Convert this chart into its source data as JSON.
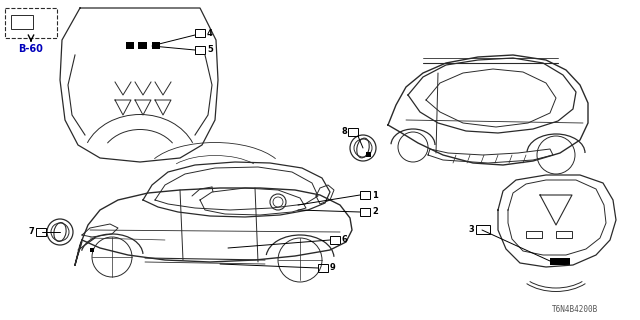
{
  "bg_color": "#ffffff",
  "line_color": "#2a2a2a",
  "footer_code": "T6N4B4200B",
  "ref_label": "B-60",
  "fig_width": 6.4,
  "fig_height": 3.2,
  "dpi": 100
}
